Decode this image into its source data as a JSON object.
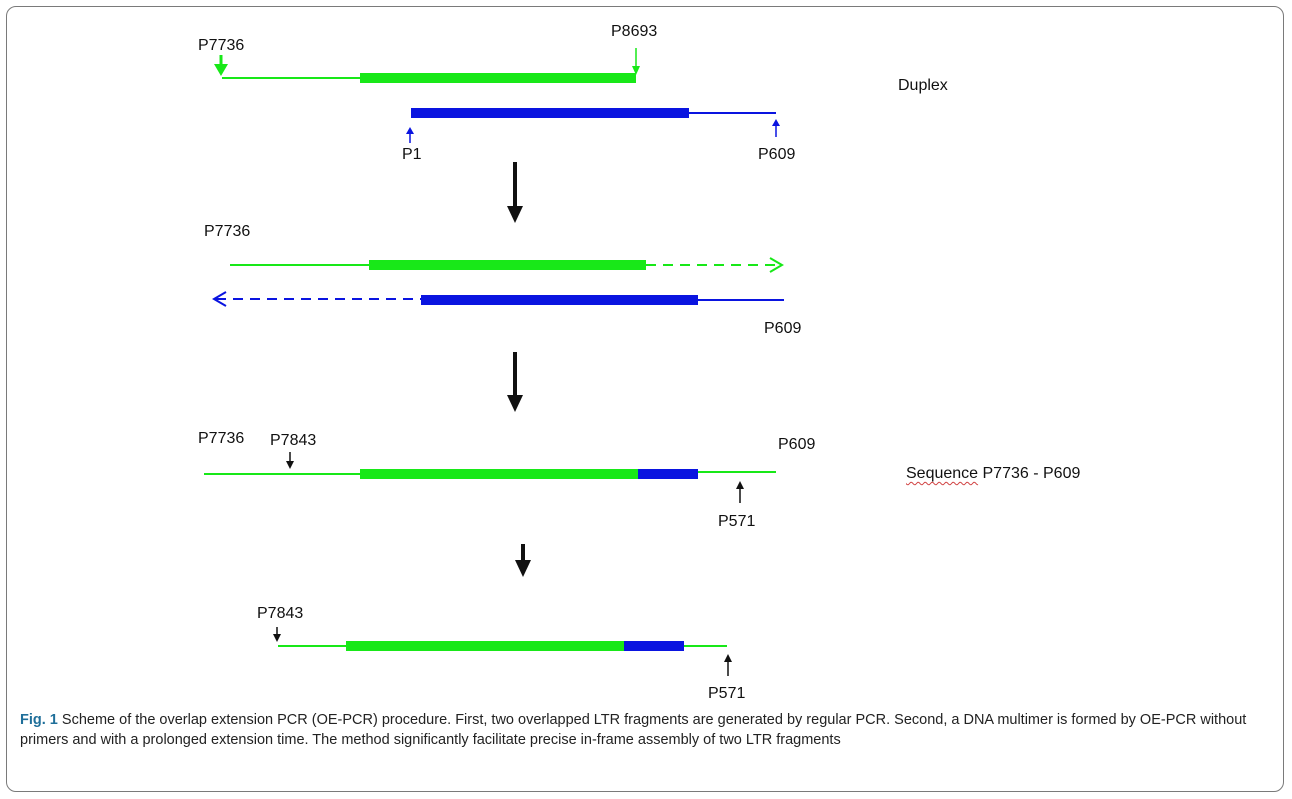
{
  "colors": {
    "green": "#18e818",
    "blue": "#0a14e0",
    "arrow": "#111111"
  },
  "step1": {
    "primer_p7736": "P7736",
    "primer_p8693": "P8693",
    "primer_p1": "P1",
    "primer_p609": "P609",
    "note": "Duplex"
  },
  "step2": {
    "primer_p7736": "P7736",
    "primer_p609": "P609"
  },
  "step3": {
    "primer_p7736": "P7736",
    "primer_p7843": "P7843",
    "primer_p609": "P609",
    "primer_p571": "P571",
    "note_word": "Sequence",
    "note_rest": " P7736 - P609"
  },
  "step4": {
    "primer_p7843": "P7843",
    "primer_p571": "P571"
  },
  "caption": {
    "label": "Fig. 1",
    "text": " Scheme of the overlap extension PCR (OE-PCR) procedure. First, two overlapped LTR fragments are generated by regular PCR. Second, a DNA multimer is formed by OE-PCR without primers and with a prolonged extension time. The method significantly facilitate precise in-frame assembly of two LTR fragments"
  }
}
